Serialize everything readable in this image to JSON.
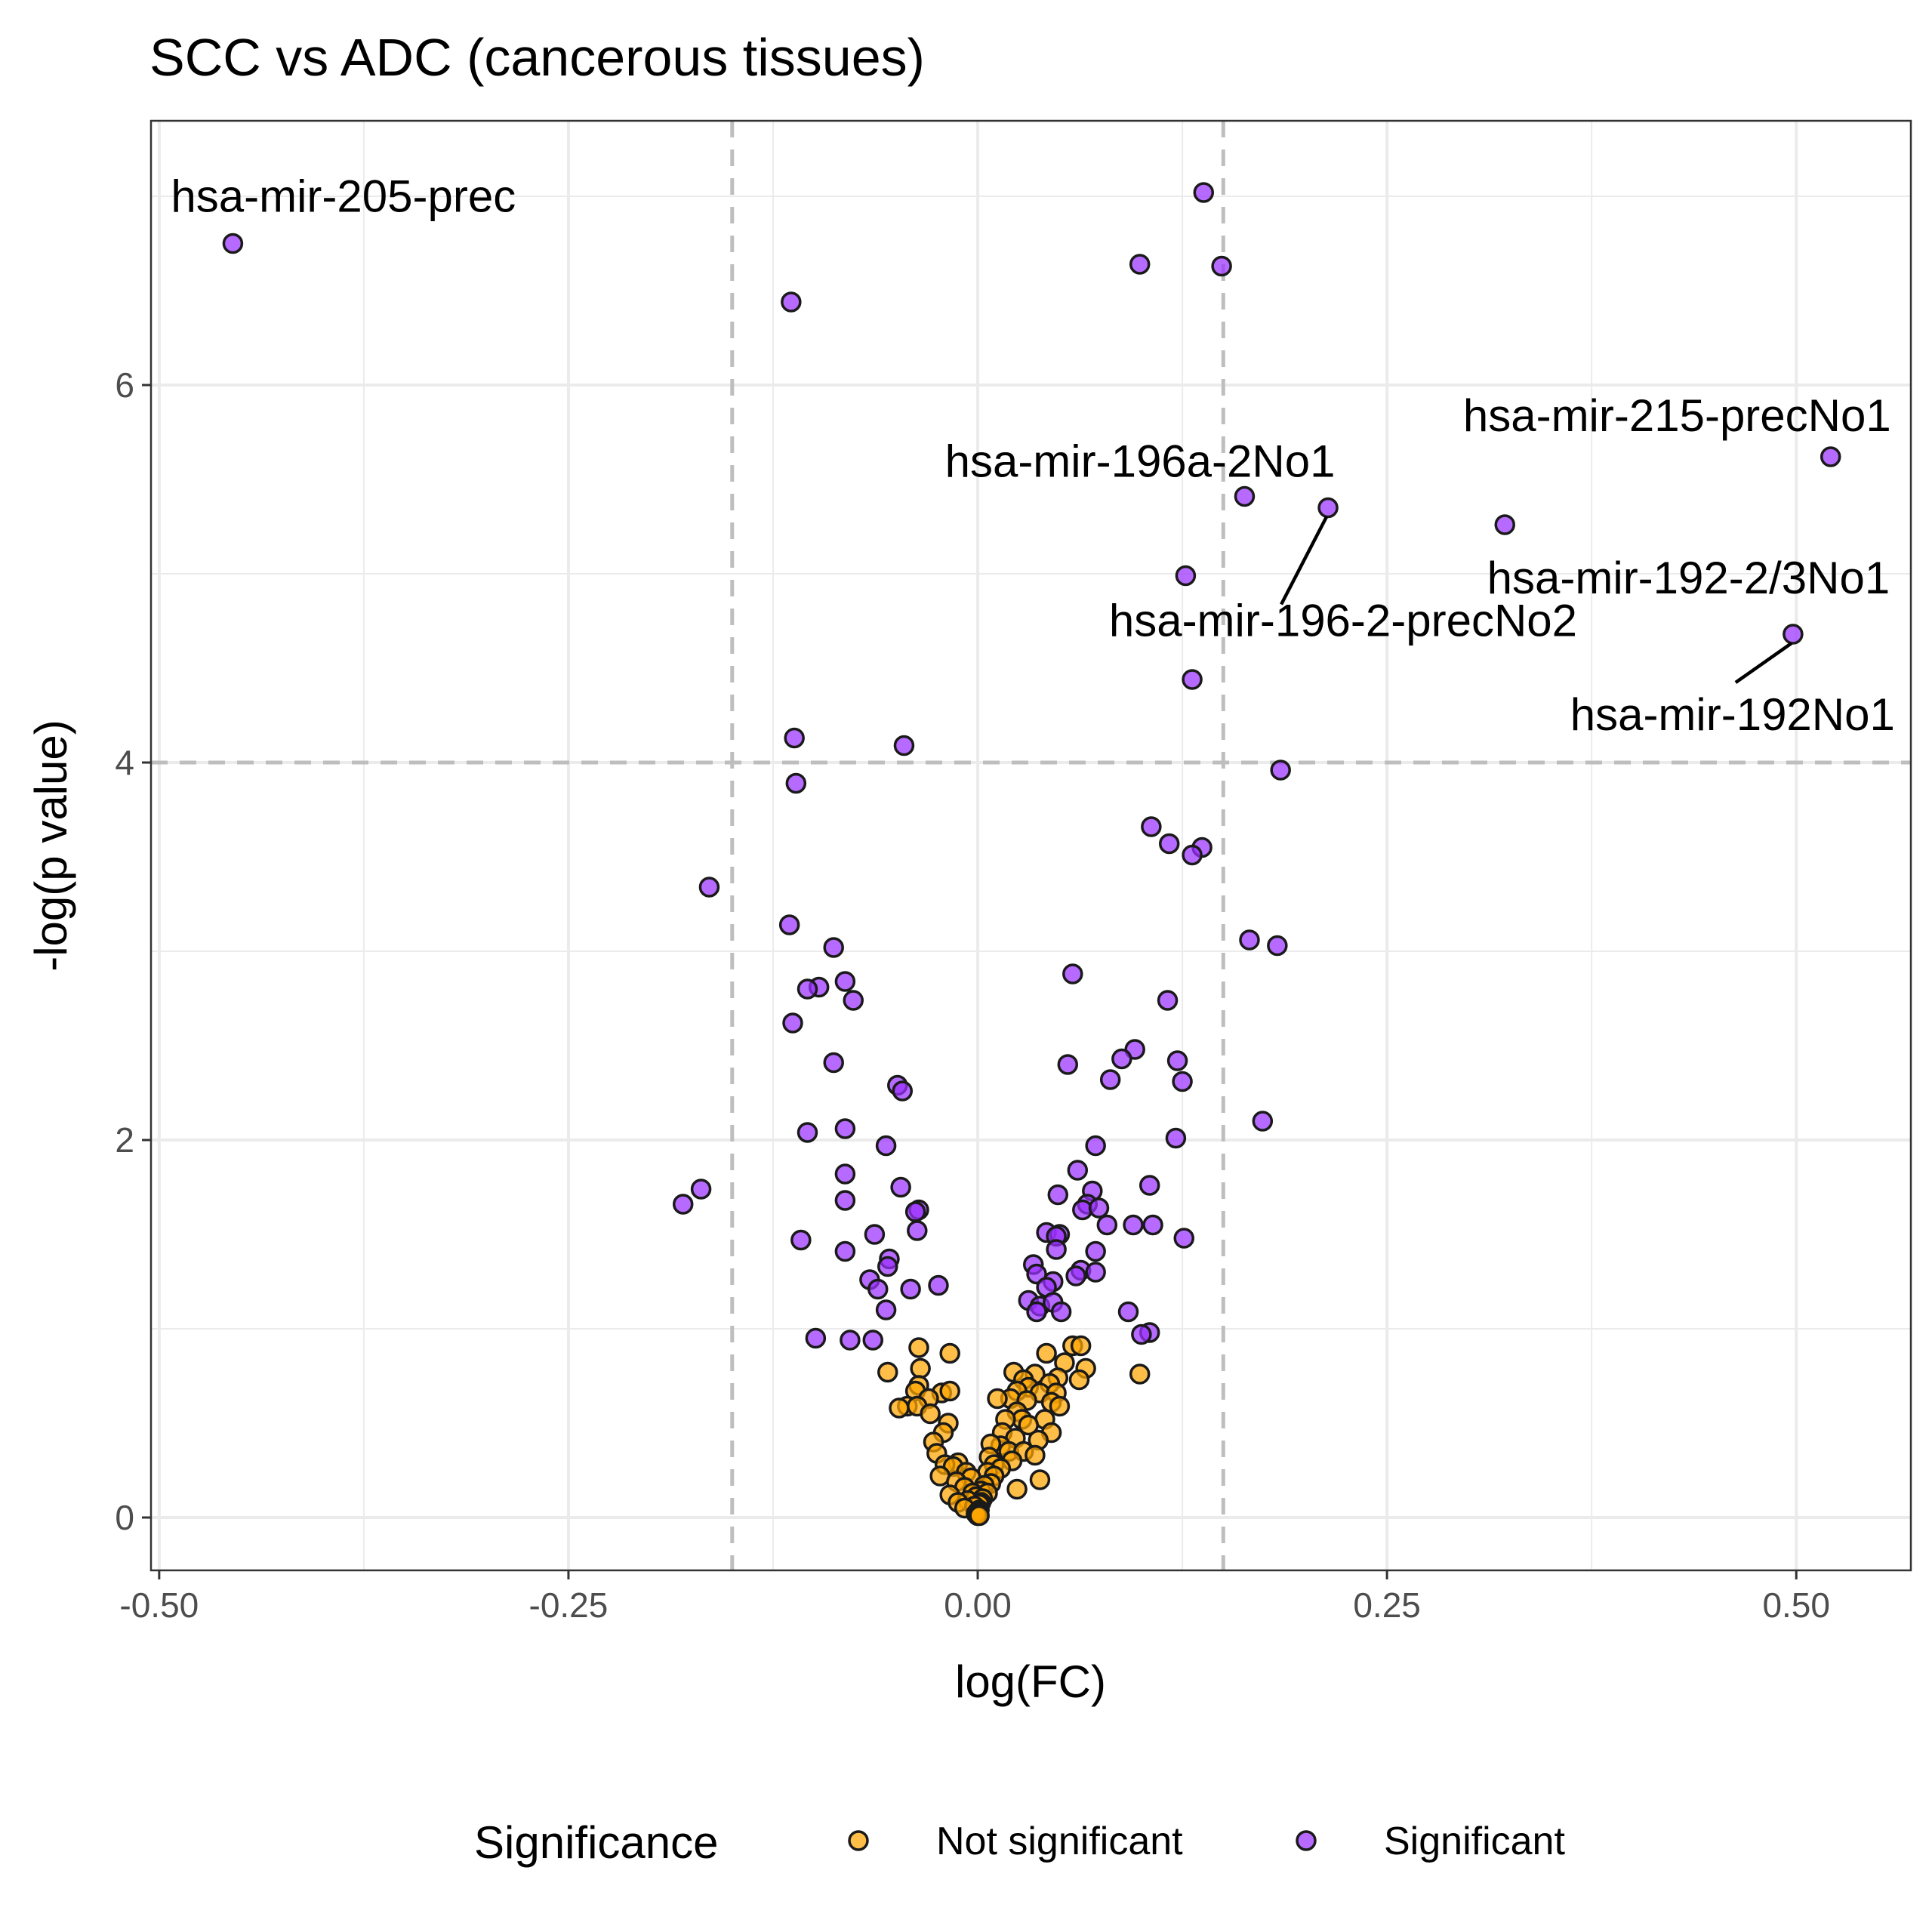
{
  "chart_data": {
    "type": "scatter",
    "title": "SCC vs ADC (cancerous tissues)",
    "xlabel": "log(FC)",
    "ylabel": "-log(p value)",
    "xlim": [
      -0.505,
      0.57
    ],
    "ylim": [
      -0.28,
      7.4
    ],
    "xticks": [
      -0.5,
      -0.25,
      0.0,
      0.25,
      0.5
    ],
    "xtick_labels": [
      "-0.50",
      "-0.25",
      "0.00",
      "0.25",
      "0.50"
    ],
    "yticks": [
      0,
      2,
      4,
      6
    ],
    "ytick_labels": [
      "0",
      "2",
      "4",
      "6"
    ],
    "grid": true,
    "thresholds": {
      "x": [
        -0.15,
        0.15
      ],
      "y": 4
    },
    "legend": {
      "title": "Significance",
      "position": "bottom",
      "entries": [
        {
          "label": "Not significant",
          "color": "#FFA500"
        },
        {
          "label": "Significant",
          "color": "#9B30FF"
        }
      ]
    },
    "series": [
      {
        "name": "Significant",
        "color": "#9B30FF",
        "points": [
          [
            -0.455,
            6.75
          ],
          [
            0.138,
            7.02
          ],
          [
            0.099,
            6.64
          ],
          [
            0.149,
            6.63
          ],
          [
            -0.114,
            6.44
          ],
          [
            0.521,
            5.62
          ],
          [
            0.214,
            5.35
          ],
          [
            0.163,
            5.41
          ],
          [
            0.322,
            5.26
          ],
          [
            0.127,
            4.99
          ],
          [
            0.498,
            4.68
          ],
          [
            0.131,
            4.44
          ],
          [
            -0.112,
            4.13
          ],
          [
            -0.045,
            4.09
          ],
          [
            -0.111,
            3.89
          ],
          [
            0.185,
            3.96
          ],
          [
            0.106,
            3.66
          ],
          [
            0.117,
            3.57
          ],
          [
            0.137,
            3.55
          ],
          [
            0.131,
            3.51
          ],
          [
            -0.164,
            3.34
          ],
          [
            -0.115,
            3.14
          ],
          [
            0.166,
            3.06
          ],
          [
            0.183,
            3.03
          ],
          [
            -0.088,
            3.02
          ],
          [
            0.058,
            2.88
          ],
          [
            -0.081,
            2.84
          ],
          [
            -0.097,
            2.81
          ],
          [
            -0.104,
            2.8
          ],
          [
            -0.076,
            2.74
          ],
          [
            0.116,
            2.74
          ],
          [
            -0.113,
            2.62
          ],
          [
            0.096,
            2.48
          ],
          [
            0.088,
            2.43
          ],
          [
            0.122,
            2.42
          ],
          [
            -0.088,
            2.41
          ],
          [
            0.055,
            2.4
          ],
          [
            0.081,
            2.32
          ],
          [
            0.125,
            2.31
          ],
          [
            -0.049,
            2.29
          ],
          [
            -0.046,
            2.26
          ],
          [
            0.174,
            2.1
          ],
          [
            -0.104,
            2.04
          ],
          [
            -0.081,
            2.06
          ],
          [
            0.121,
            2.01
          ],
          [
            -0.056,
            1.97
          ],
          [
            0.072,
            1.97
          ],
          [
            -0.081,
            1.82
          ],
          [
            0.061,
            1.84
          ],
          [
            0.105,
            1.76
          ],
          [
            -0.047,
            1.75
          ],
          [
            -0.169,
            1.74
          ],
          [
            0.07,
            1.73
          ],
          [
            -0.18,
            1.66
          ],
          [
            0.049,
            1.71
          ],
          [
            -0.081,
            1.68
          ],
          [
            0.067,
            1.66
          ],
          [
            0.064,
            1.63
          ],
          [
            0.074,
            1.64
          ],
          [
            -0.036,
            1.63
          ],
          [
            -0.038,
            1.62
          ],
          [
            -0.037,
            1.52
          ],
          [
            0.079,
            1.55
          ],
          [
            0.095,
            1.55
          ],
          [
            0.107,
            1.55
          ],
          [
            0.042,
            1.51
          ],
          [
            0.05,
            1.5
          ],
          [
            0.048,
            1.49
          ],
          [
            -0.108,
            1.47
          ],
          [
            -0.063,
            1.5
          ],
          [
            0.126,
            1.48
          ],
          [
            -0.081,
            1.41
          ],
          [
            0.072,
            1.41
          ],
          [
            0.048,
            1.42
          ],
          [
            -0.054,
            1.37
          ],
          [
            0.034,
            1.34
          ],
          [
            0.063,
            1.31
          ],
          [
            0.06,
            1.28
          ],
          [
            0.036,
            1.29
          ],
          [
            -0.055,
            1.33
          ],
          [
            0.072,
            1.3
          ],
          [
            -0.066,
            1.26
          ],
          [
            -0.024,
            1.23
          ],
          [
            0.046,
            1.25
          ],
          [
            -0.061,
            1.21
          ],
          [
            0.042,
            1.22
          ],
          [
            -0.041,
            1.21
          ],
          [
            0.031,
            1.15
          ],
          [
            0.038,
            1.12
          ],
          [
            0.046,
            1.14
          ],
          [
            0.036,
            1.09
          ],
          [
            0.051,
            1.09
          ],
          [
            -0.056,
            1.1
          ],
          [
            0.092,
            1.09
          ],
          [
            0.105,
            0.98
          ],
          [
            0.1,
            0.97
          ],
          [
            -0.099,
            0.95
          ],
          [
            -0.078,
            0.94
          ],
          [
            -0.064,
            0.94
          ]
        ]
      },
      {
        "name": "Not significant",
        "color": "#FFA500",
        "points": [
          [
            -0.036,
            0.9
          ],
          [
            0.058,
            0.91
          ],
          [
            0.063,
            0.91
          ],
          [
            -0.017,
            0.87
          ],
          [
            0.042,
            0.87
          ],
          [
            -0.035,
            0.79
          ],
          [
            0.053,
            0.82
          ],
          [
            0.022,
            0.77
          ],
          [
            0.035,
            0.76
          ],
          [
            0.066,
            0.79
          ],
          [
            0.049,
            0.74
          ],
          [
            -0.055,
            0.77
          ],
          [
            0.099,
            0.76
          ],
          [
            0.062,
            0.73
          ],
          [
            0.028,
            0.73
          ],
          [
            0.044,
            0.71
          ],
          [
            -0.036,
            0.7
          ],
          [
            0.031,
            0.69
          ],
          [
            -0.038,
            0.67
          ],
          [
            0.024,
            0.67
          ],
          [
            0.038,
            0.66
          ],
          [
            0.048,
            0.66
          ],
          [
            -0.022,
            0.66
          ],
          [
            -0.017,
            0.67
          ],
          [
            0.02,
            0.63
          ],
          [
            0.03,
            0.62
          ],
          [
            0.045,
            0.61
          ],
          [
            0.012,
            0.63
          ],
          [
            -0.03,
            0.63
          ],
          [
            0.05,
            0.59
          ],
          [
            -0.043,
            0.59
          ],
          [
            -0.037,
            0.59
          ],
          [
            -0.048,
            0.58
          ],
          [
            0.024,
            0.56
          ],
          [
            -0.029,
            0.55
          ],
          [
            0.027,
            0.52
          ],
          [
            0.041,
            0.52
          ],
          [
            0.017,
            0.52
          ],
          [
            -0.018,
            0.5
          ],
          [
            0.031,
            0.49
          ],
          [
            0.045,
            0.45
          ],
          [
            0.015,
            0.45
          ],
          [
            -0.021,
            0.45
          ],
          [
            0.023,
            0.42
          ],
          [
            0.037,
            0.41
          ],
          [
            0.014,
            0.38
          ],
          [
            0.008,
            0.39
          ],
          [
            -0.027,
            0.4
          ],
          [
            0.019,
            0.35
          ],
          [
            0.028,
            0.35
          ],
          [
            0.035,
            0.33
          ],
          [
            -0.025,
            0.34
          ],
          [
            0.007,
            0.32
          ],
          [
            0.021,
            0.3
          ],
          [
            -0.012,
            0.29
          ],
          [
            0.01,
            0.28
          ],
          [
            -0.02,
            0.28
          ],
          [
            -0.015,
            0.27
          ],
          [
            0.014,
            0.26
          ],
          [
            -0.007,
            0.24
          ],
          [
            0.006,
            0.24
          ],
          [
            0.01,
            0.22
          ],
          [
            -0.023,
            0.22
          ],
          [
            -0.004,
            0.21
          ],
          [
            0.038,
            0.2
          ],
          [
            0.008,
            0.18
          ],
          [
            -0.013,
            0.19
          ],
          [
            0.004,
            0.17
          ],
          [
            -0.008,
            0.16
          ],
          [
            0.024,
            0.15
          ],
          [
            0.002,
            0.14
          ],
          [
            -0.003,
            0.13
          ],
          [
            0.006,
            0.13
          ],
          [
            -0.017,
            0.12
          ],
          [
            -0.001,
            0.11
          ],
          [
            0.003,
            0.1
          ],
          [
            -0.006,
            0.09
          ],
          [
            0.002,
            0.08
          ],
          [
            -0.012,
            0.08
          ],
          [
            0.001,
            0.07
          ],
          [
            -0.002,
            0.06
          ],
          [
            -0.008,
            0.05
          ],
          [
            0.001,
            0.04
          ],
          [
            0.0,
            0.03
          ],
          [
            -0.001,
            0.02
          ],
          [
            0.0,
            0.01
          ],
          [
            0.001,
            0.01
          ]
        ]
      }
    ],
    "annotations": [
      {
        "label": "hsa-mir-205-prec",
        "x": -0.455,
        "y": 6.75,
        "leader": false
      },
      {
        "label": "hsa-mir-215-precNo1",
        "x": 0.521,
        "y": 5.62,
        "leader": false
      },
      {
        "label": "hsa-mir-196a-2No1",
        "x": 0.163,
        "y": 5.41,
        "leader": false
      },
      {
        "label": "hsa-mir-196-2-precNo2",
        "x": 0.214,
        "y": 5.35,
        "leader": true
      },
      {
        "label": "hsa-mir-192-2/3No1",
        "x": 0.322,
        "y": 5.26,
        "leader": false
      },
      {
        "label": "hsa-mir-192No1",
        "x": 0.498,
        "y": 4.68,
        "leader": true
      }
    ]
  }
}
